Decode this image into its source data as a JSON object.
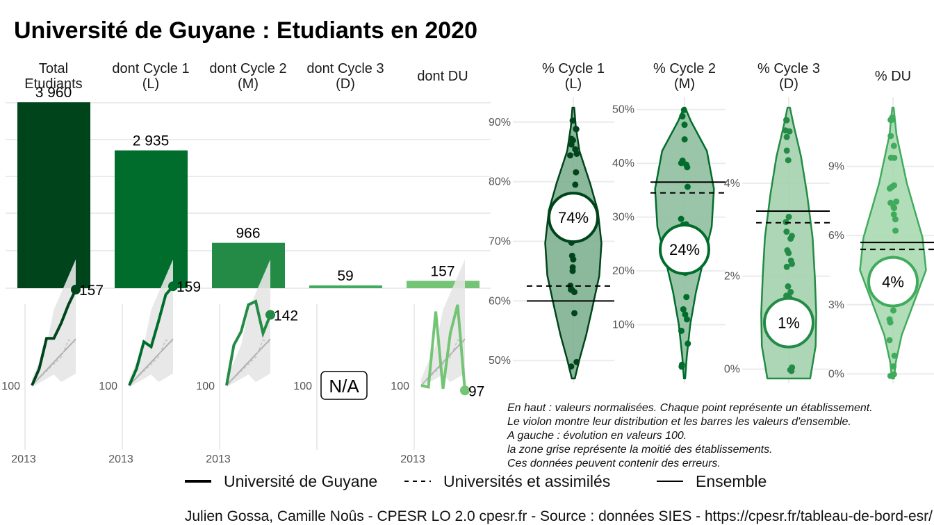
{
  "title": "Université de Guyane  :  Etudiants en 2020",
  "chart_data": [
    {
      "type": "bar",
      "categories": [
        "Total\nEtudiants",
        "dont Cycle 1\n(L)",
        "dont Cycle 2\n(M)",
        "dont Cycle 3\n(D)",
        "dont DU"
      ],
      "values": [
        3960,
        2935,
        966,
        59,
        157
      ],
      "value_labels": [
        "3 960",
        "2 935",
        "966",
        "59",
        "157"
      ],
      "colors": [
        "#00441b",
        "#006d2c",
        "#238b45",
        "#41ab5d",
        "#74c476"
      ],
      "ylim": [
        0,
        4000
      ]
    },
    {
      "type": "line",
      "panels": [
        {
          "category": "Total Etudiants",
          "start_label": "100",
          "end_label": "157",
          "end_value": 157,
          "x_label": "2013",
          "series": [
            100,
            110,
            128,
            128,
            137,
            148,
            157
          ]
        },
        {
          "category": "dont Cycle 1 (L)",
          "start_label": "100",
          "end_label": "159",
          "end_value": 159,
          "x_label": "2013",
          "series": [
            100,
            110,
            126,
            123,
            138,
            154,
            159
          ]
        },
        {
          "category": "dont Cycle 2 (M)",
          "start_label": "100",
          "end_label": "142",
          "end_value": 142,
          "x_label": "2013",
          "series": [
            100,
            124,
            132,
            148,
            150,
            131,
            142
          ]
        },
        {
          "category": "dont Cycle 3 (D)",
          "start_label": "100",
          "na_label": "N/A"
        },
        {
          "category": "dont DU",
          "start_label": "100",
          "end_label": "97",
          "end_value": 97,
          "x_label": "2013",
          "series": [
            100,
            99,
            144,
            98,
            131,
            148,
            97
          ]
        }
      ]
    },
    {
      "type": "violin",
      "panels": [
        {
          "title": "% Cycle 1\n(L)",
          "value_label": "74%",
          "value": 74,
          "ticks": [
            "50%",
            "60%",
            "70%",
            "80%",
            "90%"
          ],
          "tick_values": [
            50,
            60,
            70,
            80,
            90
          ],
          "ylim": [
            47,
            93
          ],
          "ensemble": 60,
          "universites": 62.5,
          "color": "#00441b",
          "fill": "#7fb191"
        },
        {
          "title": "% Cycle 2\n(M)",
          "value_label": "24%",
          "value": 24,
          "ticks": [
            "10%",
            "20%",
            "30%",
            "40%",
            "50%"
          ],
          "tick_values": [
            10,
            20,
            30,
            40,
            50
          ],
          "ylim": [
            0,
            51
          ],
          "ensemble": 36.5,
          "universites": 34.5,
          "color": "#006d2c",
          "fill": "#8fbf9f"
        },
        {
          "title": "% Cycle 3\n(D)",
          "value_label": "1%",
          "value": 1,
          "ticks": [
            "0%",
            "2%",
            "4%"
          ],
          "tick_values": [
            0,
            2,
            4
          ],
          "ylim": [
            -0.2,
            5.7
          ],
          "ensemble": 3.4,
          "universites": 3.15,
          "color": "#238b45",
          "fill": "#a3d1ae"
        },
        {
          "title": "% DU",
          "value_label": "4%",
          "value": 4,
          "ticks": [
            "0%",
            "3%",
            "6%",
            "9%"
          ],
          "tick_values": [
            0,
            3,
            6,
            9
          ],
          "ylim": [
            -0.2,
            11.7
          ],
          "ensemble": 5.7,
          "universites": 5.4,
          "color": "#41ab5d",
          "fill": "#a8dab0"
        }
      ]
    }
  ],
  "notes": [
    "En haut : valeurs normalisées. Chaque point représente un établissement.",
    "Le violon montre leur distribution et les barres les valeurs d'ensemble.",
    "A gauche : évolution en valeurs 100.",
    "la zone grise représente la moitié des établissements.",
    "Ces données peuvent contenir des erreurs."
  ],
  "legend": {
    "items": [
      {
        "label": "Université de Guyane",
        "style": "solid-thick"
      },
      {
        "label": "Universités et assimilés",
        "style": "dashed"
      },
      {
        "label": "Ensemble",
        "style": "solid"
      }
    ]
  },
  "caption": "Julien Gossa, Camille Noûs - CPESR LO 2.0 cpesr.fr - Source : données SIES - https://cpesr.fr/tableau-de-bord-esr/"
}
